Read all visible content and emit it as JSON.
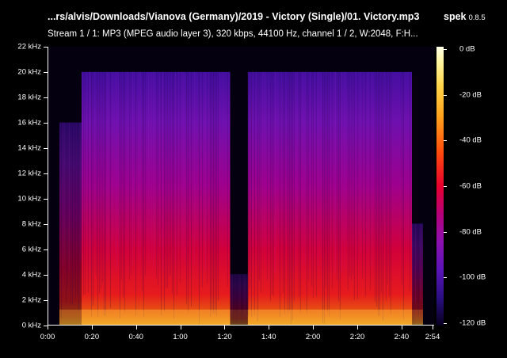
{
  "header": {
    "file_path": "...rs/alvis/Downloads/Vianova (Germany)/2019 - Victory (Single)/01. Victory.mp3",
    "app_name": "spek",
    "app_version": "0.8.5",
    "stream_info": "Stream 1 / 1: MP3 (MPEG audio layer 3), 320 kbps, 44100 Hz, channel 1 / 2, W:2048, F:H..."
  },
  "axes": {
    "y_labels": [
      "22 kHz",
      "20 kHz",
      "18 kHz",
      "16 kHz",
      "14 kHz",
      "12 kHz",
      "10 kHz",
      "8 kHz",
      "6 kHz",
      "4 kHz",
      "2 kHz",
      "0 kHz"
    ],
    "x_labels": [
      "0:00",
      "0:20",
      "0:40",
      "1:00",
      "1:20",
      "1:40",
      "2:00",
      "2:20",
      "2:40",
      "2:54"
    ],
    "colorbar_labels": [
      "0 dB",
      "-20 dB",
      "-40 dB",
      "-60 dB",
      "-80 dB",
      "-100 dB",
      "-120 dB"
    ]
  },
  "chart_data": {
    "type": "heatmap",
    "xlabel": "",
    "ylabel": "",
    "x_range_seconds": [
      0,
      174
    ],
    "y_range_khz": [
      0,
      22
    ],
    "db_range": [
      -120,
      0
    ],
    "x_ticks": [
      "0:00",
      "0:20",
      "0:40",
      "1:00",
      "1:20",
      "1:40",
      "2:00",
      "2:20",
      "2:40",
      "2:54"
    ],
    "y_ticks": [
      "0 kHz",
      "2 kHz",
      "4 kHz",
      "6 kHz",
      "8 kHz",
      "10 kHz",
      "12 kHz",
      "14 kHz",
      "16 kHz",
      "18 kHz",
      "20 kHz",
      "22 kHz"
    ],
    "colorbar_ticks": [
      "0 dB",
      "-20 dB",
      "-40 dB",
      "-60 dB",
      "-80 dB",
      "-100 dB",
      "-120 dB"
    ],
    "segments": [
      {
        "start_s": 0,
        "end_s": 5,
        "cutoff_khz": 0,
        "intensity": 0
      },
      {
        "start_s": 5,
        "end_s": 15,
        "cutoff_khz": 16,
        "intensity": 0.55
      },
      {
        "start_s": 15,
        "end_s": 82,
        "cutoff_khz": 20,
        "intensity": 0.9
      },
      {
        "start_s": 82,
        "end_s": 90,
        "cutoff_khz": 4,
        "intensity": 0.3
      },
      {
        "start_s": 90,
        "end_s": 164,
        "cutoff_khz": 20,
        "intensity": 0.9
      },
      {
        "start_s": 164,
        "end_s": 169,
        "cutoff_khz": 8,
        "intensity": 0.45
      },
      {
        "start_s": 169,
        "end_s": 174,
        "cutoff_khz": 0,
        "intensity": 0
      }
    ],
    "grid": false
  }
}
